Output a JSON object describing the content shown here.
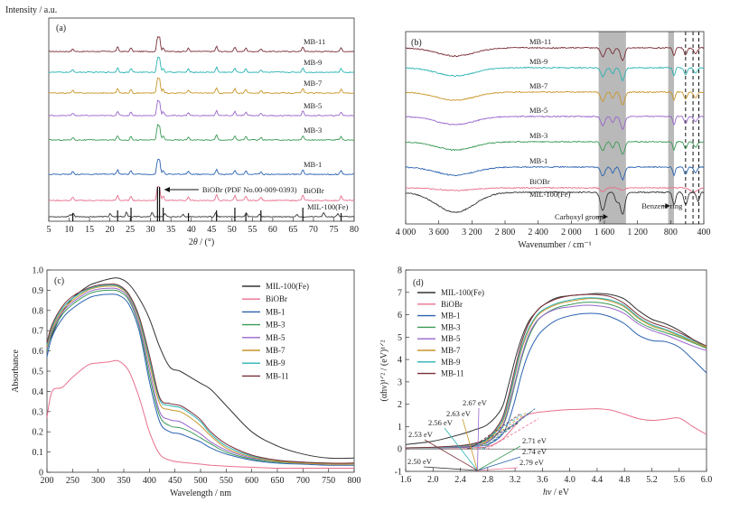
{
  "chart_data": [
    {
      "id": "a",
      "type": "line",
      "panel_label": "(a)",
      "ylabel": "Intensity / a.u.",
      "xlabel_pre": "2",
      "xlabel_theta": "θ",
      "xlabel_post": " / (°)",
      "xlim": [
        5,
        80
      ],
      "xticks": [
        5,
        10,
        15,
        20,
        25,
        30,
        35,
        40,
        45,
        50,
        55,
        60,
        65,
        70,
        75,
        80
      ],
      "y_ticklabels_shown": false,
      "series": [
        {
          "name": "MB-11",
          "color": "#7b2f38"
        },
        {
          "name": "MB-9",
          "color": "#2bb3b3"
        },
        {
          "name": "MB-7",
          "color": "#c8962a"
        },
        {
          "name": "MB-5",
          "color": "#9966cc"
        },
        {
          "name": "MB-3",
          "color": "#3a9a55"
        },
        {
          "name": "MB-1",
          "color": "#2a62b0"
        },
        {
          "name": "BiOBr",
          "color": "#e8708e"
        },
        {
          "name": "MIL-100(Fe)",
          "color": "#333333"
        }
      ],
      "biobr_peaks": [
        10.9,
        21.9,
        25.2,
        31.7,
        32.2,
        33.1,
        39.3,
        46.2,
        50.7,
        53.4,
        57.1,
        67.4,
        76.8
      ],
      "mil_peaks": [
        10.2,
        11.0,
        20.1,
        24.1,
        30.4,
        33.5,
        38.0,
        46.0,
        53.5,
        56.8,
        66.0,
        72.5,
        76.0
      ],
      "annotation": "BiOBr (PDF No.00-009-0393)"
    },
    {
      "id": "b",
      "type": "line",
      "panel_label": "(b)",
      "xlabel": "Wavenumber / cm⁻¹",
      "xlim": [
        4000,
        400
      ],
      "xticks": [
        4000,
        3600,
        3200,
        2800,
        2400,
        2000,
        1600,
        1200,
        800,
        400
      ],
      "xticklabels": [
        "4 000",
        "3 600",
        "3 200",
        "2 800",
        "2 400",
        "2 000",
        "1 600",
        "1 200",
        "800",
        "400"
      ],
      "series": [
        {
          "name": "MB-11",
          "color": "#7b2f38"
        },
        {
          "name": "MB-9",
          "color": "#2bb3b3"
        },
        {
          "name": "MB-7",
          "color": "#c8962a"
        },
        {
          "name": "MB-5",
          "color": "#9966cc"
        },
        {
          "name": "MB-3",
          "color": "#3a9a55"
        },
        {
          "name": "MB-1",
          "color": "#2a62b0"
        },
        {
          "name": "BiOBr",
          "color": "#e8708e"
        },
        {
          "name": "MIL-100(Fe)",
          "color": "#333333"
        }
      ],
      "shaded_regions": [
        [
          1670,
          1340
        ],
        [
          830,
          760
        ]
      ],
      "dashed_lines": [
        620,
        530,
        460
      ],
      "annotations": [
        "Carboxyl group",
        "Benzene ring"
      ]
    },
    {
      "id": "c",
      "type": "line",
      "panel_label": "(c)",
      "xlabel": "Wavelength / nm",
      "ylabel": "Absorbance",
      "xlim": [
        200,
        800
      ],
      "ylim": [
        0,
        1.0
      ],
      "xticks": [
        200,
        250,
        300,
        350,
        400,
        450,
        500,
        550,
        600,
        650,
        700,
        750,
        800
      ],
      "yticks": [
        0,
        0.1,
        0.2,
        0.3,
        0.4,
        0.5,
        0.6,
        0.7,
        0.8,
        0.9,
        1.0
      ],
      "yticklabels": [
        "0",
        "0.1",
        "0.2",
        "0.3",
        "0.4",
        "0.5",
        "0.6",
        "0.7",
        "0.8",
        "0.9",
        "1.0"
      ],
      "legend_position": "top-right",
      "x": [
        200,
        210,
        230,
        250,
        280,
        300,
        320,
        340,
        360,
        380,
        400,
        420,
        440,
        460,
        480,
        500,
        520,
        550,
        600,
        650,
        700,
        750,
        800
      ],
      "series": [
        {
          "name": "MIL-100(Fe)",
          "color": "#333333",
          "values": [
            0.62,
            0.68,
            0.79,
            0.86,
            0.92,
            0.94,
            0.955,
            0.96,
            0.93,
            0.86,
            0.76,
            0.62,
            0.52,
            0.5,
            0.47,
            0.44,
            0.41,
            0.33,
            0.2,
            0.13,
            0.09,
            0.07,
            0.07
          ]
        },
        {
          "name": "BiOBr",
          "color": "#e8708e",
          "values": [
            0.27,
            0.4,
            0.42,
            0.47,
            0.53,
            0.54,
            0.545,
            0.55,
            0.5,
            0.37,
            0.2,
            0.09,
            0.06,
            0.05,
            0.045,
            0.04,
            0.035,
            0.03,
            0.025,
            0.02,
            0.02,
            0.02,
            0.02
          ]
        },
        {
          "name": "MB-1",
          "color": "#2a62b0",
          "values": [
            0.57,
            0.67,
            0.76,
            0.81,
            0.86,
            0.875,
            0.88,
            0.875,
            0.83,
            0.7,
            0.45,
            0.25,
            0.2,
            0.19,
            0.17,
            0.15,
            0.12,
            0.09,
            0.06,
            0.045,
            0.04,
            0.035,
            0.035
          ]
        },
        {
          "name": "MB-3",
          "color": "#3a9a55",
          "values": [
            0.6,
            0.69,
            0.78,
            0.83,
            0.88,
            0.895,
            0.9,
            0.895,
            0.85,
            0.72,
            0.48,
            0.28,
            0.23,
            0.22,
            0.2,
            0.17,
            0.14,
            0.1,
            0.065,
            0.05,
            0.045,
            0.04,
            0.04
          ]
        },
        {
          "name": "MB-5",
          "color": "#9966cc",
          "values": [
            0.61,
            0.7,
            0.79,
            0.84,
            0.89,
            0.905,
            0.91,
            0.905,
            0.86,
            0.73,
            0.51,
            0.3,
            0.26,
            0.25,
            0.22,
            0.19,
            0.15,
            0.11,
            0.07,
            0.055,
            0.045,
            0.04,
            0.04
          ]
        },
        {
          "name": "MB-7",
          "color": "#c8962a",
          "values": [
            0.62,
            0.71,
            0.8,
            0.85,
            0.9,
            0.915,
            0.92,
            0.915,
            0.87,
            0.75,
            0.54,
            0.34,
            0.31,
            0.3,
            0.27,
            0.23,
            0.18,
            0.12,
            0.075,
            0.055,
            0.045,
            0.04,
            0.04
          ]
        },
        {
          "name": "MB-9",
          "color": "#2bb3b3",
          "values": [
            0.63,
            0.72,
            0.81,
            0.86,
            0.905,
            0.92,
            0.925,
            0.92,
            0.875,
            0.76,
            0.56,
            0.36,
            0.33,
            0.32,
            0.29,
            0.25,
            0.19,
            0.13,
            0.08,
            0.06,
            0.05,
            0.045,
            0.045
          ]
        },
        {
          "name": "MB-11",
          "color": "#7b2f38",
          "values": [
            0.64,
            0.73,
            0.82,
            0.87,
            0.91,
            0.925,
            0.93,
            0.925,
            0.88,
            0.77,
            0.58,
            0.37,
            0.34,
            0.33,
            0.3,
            0.26,
            0.2,
            0.14,
            0.085,
            0.06,
            0.05,
            0.045,
            0.045
          ]
        }
      ]
    },
    {
      "id": "d",
      "type": "line",
      "panel_label": "(d)",
      "xlabel_italic": "hν",
      "xlabel_unit": " / eV",
      "ylabel": "(αhν)¹ᐟ² / (eV)¹ᐟ²",
      "xlim": [
        1.6,
        6.0
      ],
      "ylim": [
        -1,
        8
      ],
      "xticks": [
        1.6,
        2.0,
        2.4,
        2.8,
        3.2,
        3.6,
        4.0,
        4.4,
        4.8,
        5.2,
        5.6,
        6.0
      ],
      "yticks": [
        -1,
        0,
        1,
        2,
        3,
        4,
        5,
        6,
        7,
        8
      ],
      "legend_position": "top-left",
      "x": [
        1.6,
        2.0,
        2.4,
        2.6,
        2.8,
        3.0,
        3.1,
        3.2,
        3.3,
        3.4,
        3.5,
        3.6,
        3.8,
        4.0,
        4.2,
        4.4,
        4.6,
        4.8,
        5.0,
        5.2,
        5.4,
        5.6,
        5.8,
        6.0
      ],
      "series": [
        {
          "name": "MIL-100(Fe)",
          "color": "#333333",
          "values": [
            0.2,
            0.35,
            0.65,
            0.85,
            1.1,
            1.8,
            2.8,
            4.0,
            5.0,
            5.7,
            6.1,
            6.4,
            6.75,
            6.85,
            6.9,
            6.95,
            6.9,
            6.7,
            6.2,
            5.8,
            5.6,
            5.3,
            4.9,
            4.5
          ]
        },
        {
          "name": "BiOBr",
          "color": "#e8708e",
          "values": [
            0.05,
            0.05,
            0.05,
            0.06,
            0.1,
            0.4,
            0.7,
            1.05,
            1.4,
            1.55,
            1.62,
            1.66,
            1.72,
            1.76,
            1.78,
            1.8,
            1.74,
            1.56,
            1.36,
            1.28,
            1.33,
            1.38,
            1.0,
            0.65
          ]
        },
        {
          "name": "MB-1",
          "color": "#2a62b0",
          "values": [
            0.05,
            0.05,
            0.08,
            0.12,
            0.2,
            0.6,
            1.2,
            2.2,
            3.4,
            4.3,
            4.9,
            5.3,
            5.75,
            5.95,
            6.05,
            6.05,
            5.9,
            5.6,
            5.1,
            4.85,
            4.8,
            4.55,
            4.0,
            3.4
          ]
        },
        {
          "name": "MB-3",
          "color": "#3a9a55",
          "values": [
            0.05,
            0.06,
            0.1,
            0.15,
            0.3,
            0.9,
            1.7,
            2.9,
            4.1,
            5.0,
            5.6,
            5.95,
            6.3,
            6.45,
            6.55,
            6.55,
            6.45,
            6.2,
            5.7,
            5.4,
            5.2,
            5.0,
            4.75,
            4.5
          ]
        },
        {
          "name": "MB-5",
          "color": "#9966cc",
          "values": [
            0.05,
            0.06,
            0.1,
            0.16,
            0.33,
            0.95,
            1.8,
            3.0,
            4.2,
            5.1,
            5.65,
            5.95,
            6.25,
            6.35,
            6.42,
            6.4,
            6.3,
            6.05,
            5.6,
            5.3,
            5.1,
            4.85,
            4.6,
            4.4
          ]
        },
        {
          "name": "MB-7",
          "color": "#c8962a",
          "values": [
            0.05,
            0.07,
            0.12,
            0.2,
            0.4,
            1.1,
            2.0,
            3.3,
            4.5,
            5.3,
            5.85,
            6.15,
            6.45,
            6.6,
            6.7,
            6.72,
            6.6,
            6.35,
            5.85,
            5.5,
            5.3,
            5.05,
            4.8,
            4.55
          ]
        },
        {
          "name": "MB-9",
          "color": "#2bb3b3",
          "values": [
            0.05,
            0.07,
            0.13,
            0.22,
            0.45,
            1.2,
            2.1,
            3.4,
            4.6,
            5.4,
            5.9,
            6.2,
            6.5,
            6.65,
            6.75,
            6.75,
            6.65,
            6.4,
            5.9,
            5.55,
            5.35,
            5.1,
            4.85,
            4.6
          ]
        },
        {
          "name": "MB-11",
          "color": "#7b2f38",
          "values": [
            0.05,
            0.08,
            0.15,
            0.25,
            0.5,
            1.3,
            2.3,
            3.6,
            4.8,
            5.6,
            6.1,
            6.4,
            6.7,
            6.85,
            6.9,
            6.9,
            6.8,
            6.5,
            6.0,
            5.65,
            5.45,
            5.2,
            4.9,
            4.6
          ]
        }
      ],
      "bandgaps": [
        {
          "label": "2.53 eV",
          "value": 2.53,
          "color": "#7b2f38"
        },
        {
          "label": "2.56 eV",
          "value": 2.56,
          "color": "#2bb3b3"
        },
        {
          "label": "2.63 eV",
          "value": 2.63,
          "color": "#c8962a"
        },
        {
          "label": "2.67 eV",
          "value": 2.67,
          "color": "#9966cc"
        },
        {
          "label": "2.50 eV",
          "value": 2.5,
          "color": "#333333"
        },
        {
          "label": "2.71 eV",
          "value": 2.71,
          "color": "#3a9a55"
        },
        {
          "label": "2.74 eV",
          "value": 2.74,
          "color": "#2a62b0"
        },
        {
          "label": "2.79 eV",
          "value": 2.79,
          "color": "#e8708e"
        }
      ]
    }
  ]
}
